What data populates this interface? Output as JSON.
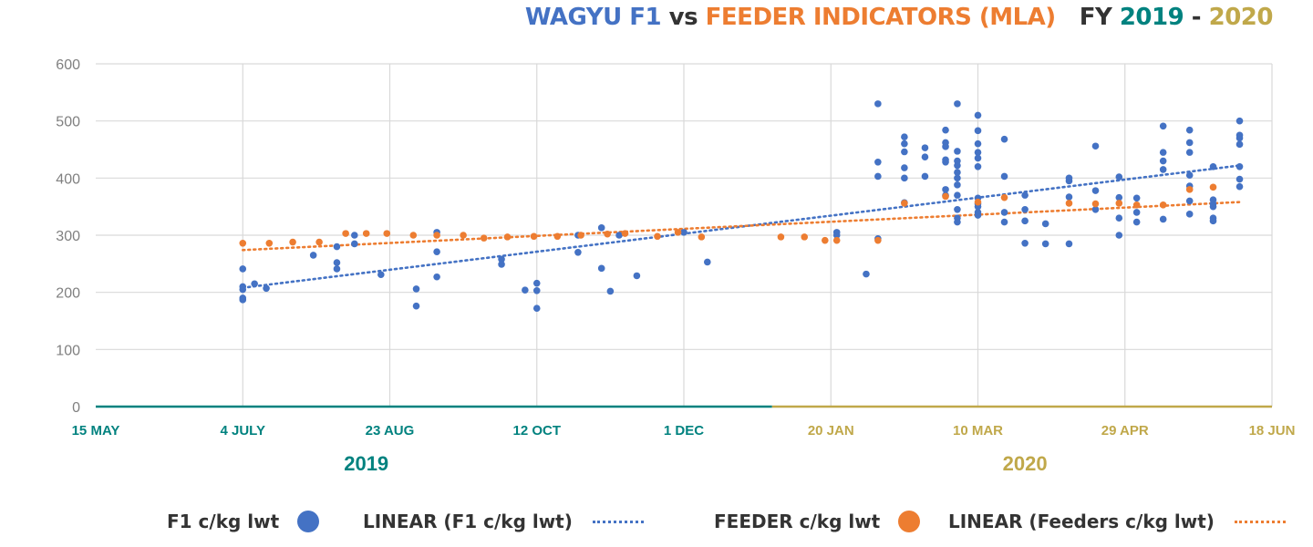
{
  "title": {
    "part1": "WAGYU F1",
    "part2": " vs ",
    "part3": "FEEDER INDICATORS (MLA)",
    "part4": "FY ",
    "part5": "2019",
    "part6": " - ",
    "part7": "2020"
  },
  "colors": {
    "f1": "#4472c4",
    "feeder": "#ed7d31",
    "year2019": "#00827f",
    "year2020": "#c0a84a",
    "grid": "#d9d9d9",
    "axis_text": "#808080",
    "title_dark": "#333333"
  },
  "legend": {
    "f1": "F1 c/kg lwt",
    "f1_linear": "LINEAR (F1 c/kg lwt)",
    "feeder": "FEEDER c/kg lwt",
    "feeder_linear": "LINEAR (Feeders c/kg lwt)"
  },
  "chart_data": {
    "type": "scatter",
    "ylim": [
      0,
      600
    ],
    "yticks": [
      0,
      100,
      200,
      300,
      400,
      500,
      600
    ],
    "xlim": [
      "2019-05-15",
      "2020-06-18"
    ],
    "xticks": [
      {
        "date": "2019-05-15",
        "label": "15 MAY"
      },
      {
        "date": "2019-07-04",
        "label": "4 JULY"
      },
      {
        "date": "2019-08-23",
        "label": "23 AUG"
      },
      {
        "date": "2019-10-12",
        "label": "12 OCT"
      },
      {
        "date": "2019-12-01",
        "label": "1 DEC"
      },
      {
        "date": "2020-01-20",
        "label": "20 JAN"
      },
      {
        "date": "2020-03-10",
        "label": "10 MAR"
      },
      {
        "date": "2020-04-29",
        "label": "29 APR"
      },
      {
        "date": "2020-06-18",
        "label": "18 JUN"
      }
    ],
    "year_labels": [
      {
        "label": "2019",
        "from": "2019-05-15",
        "to": "2019-12-31"
      },
      {
        "label": "2020",
        "from": "2019-12-31",
        "to": "2020-06-18"
      }
    ],
    "grid": true,
    "legend_position": "bottom",
    "series": [
      {
        "name": "F1 c/kg lwt",
        "color": "#4472c4",
        "points": [
          [
            "2019-07-04",
            241
          ],
          [
            "2019-07-04",
            210
          ],
          [
            "2019-07-04",
            205
          ],
          [
            "2019-07-04",
            190
          ],
          [
            "2019-07-04",
            187
          ],
          [
            "2019-07-08",
            215
          ],
          [
            "2019-07-12",
            207
          ],
          [
            "2019-07-28",
            265
          ],
          [
            "2019-08-05",
            280
          ],
          [
            "2019-08-05",
            252
          ],
          [
            "2019-08-05",
            241
          ],
          [
            "2019-08-11",
            300
          ],
          [
            "2019-08-11",
            285
          ],
          [
            "2019-08-20",
            231
          ],
          [
            "2019-09-01",
            206
          ],
          [
            "2019-09-01",
            176
          ],
          [
            "2019-09-08",
            305
          ],
          [
            "2019-09-08",
            271
          ],
          [
            "2019-09-08",
            227
          ],
          [
            "2019-09-30",
            258
          ],
          [
            "2019-09-30",
            249
          ],
          [
            "2019-10-08",
            204
          ],
          [
            "2019-10-12",
            216
          ],
          [
            "2019-10-12",
            203
          ],
          [
            "2019-10-12",
            172
          ],
          [
            "2019-10-26",
            270
          ],
          [
            "2019-10-26",
            300
          ],
          [
            "2019-11-03",
            313
          ],
          [
            "2019-11-03",
            242
          ],
          [
            "2019-11-06",
            202
          ],
          [
            "2019-11-09",
            300
          ],
          [
            "2019-11-15",
            229
          ],
          [
            "2019-12-01",
            305
          ],
          [
            "2019-12-09",
            253
          ],
          [
            "2020-01-22",
            305
          ],
          [
            "2020-01-22",
            300
          ],
          [
            "2020-02-01",
            232
          ],
          [
            "2020-02-05",
            530
          ],
          [
            "2020-02-05",
            428
          ],
          [
            "2020-02-05",
            403
          ],
          [
            "2020-02-05",
            294
          ],
          [
            "2020-02-14",
            472
          ],
          [
            "2020-02-14",
            460
          ],
          [
            "2020-02-14",
            446
          ],
          [
            "2020-02-14",
            418
          ],
          [
            "2020-02-14",
            400
          ],
          [
            "2020-02-14",
            357
          ],
          [
            "2020-02-21",
            453
          ],
          [
            "2020-02-21",
            437
          ],
          [
            "2020-02-21",
            403
          ],
          [
            "2020-02-28",
            484
          ],
          [
            "2020-02-28",
            462
          ],
          [
            "2020-02-28",
            455
          ],
          [
            "2020-02-28",
            432
          ],
          [
            "2020-02-28",
            428
          ],
          [
            "2020-02-28",
            380
          ],
          [
            "2020-02-28",
            370
          ],
          [
            "2020-03-03",
            530
          ],
          [
            "2020-03-03",
            447
          ],
          [
            "2020-03-03",
            430
          ],
          [
            "2020-03-03",
            422
          ],
          [
            "2020-03-03",
            410
          ],
          [
            "2020-03-03",
            400
          ],
          [
            "2020-03-03",
            388
          ],
          [
            "2020-03-03",
            370
          ],
          [
            "2020-03-03",
            345
          ],
          [
            "2020-03-03",
            330
          ],
          [
            "2020-03-03",
            323
          ],
          [
            "2020-03-10",
            510
          ],
          [
            "2020-03-10",
            483
          ],
          [
            "2020-03-10",
            460
          ],
          [
            "2020-03-10",
            445
          ],
          [
            "2020-03-10",
            435
          ],
          [
            "2020-03-10",
            420
          ],
          [
            "2020-03-10",
            365
          ],
          [
            "2020-03-10",
            355
          ],
          [
            "2020-03-10",
            350
          ],
          [
            "2020-03-10",
            340
          ],
          [
            "2020-03-10",
            335
          ],
          [
            "2020-03-19",
            468
          ],
          [
            "2020-03-19",
            403
          ],
          [
            "2020-03-19",
            340
          ],
          [
            "2020-03-19",
            323
          ],
          [
            "2020-03-26",
            370
          ],
          [
            "2020-03-26",
            345
          ],
          [
            "2020-03-26",
            325
          ],
          [
            "2020-03-26",
            286
          ],
          [
            "2020-04-02",
            320
          ],
          [
            "2020-04-02",
            285
          ],
          [
            "2020-04-10",
            400
          ],
          [
            "2020-04-10",
            395
          ],
          [
            "2020-04-10",
            367
          ],
          [
            "2020-04-10",
            285
          ],
          [
            "2020-04-19",
            456
          ],
          [
            "2020-04-19",
            378
          ],
          [
            "2020-04-19",
            345
          ],
          [
            "2020-04-27",
            402
          ],
          [
            "2020-04-27",
            366
          ],
          [
            "2020-04-27",
            330
          ],
          [
            "2020-04-27",
            300
          ],
          [
            "2020-05-03",
            365
          ],
          [
            "2020-05-03",
            340
          ],
          [
            "2020-05-03",
            323
          ],
          [
            "2020-05-12",
            491
          ],
          [
            "2020-05-12",
            445
          ],
          [
            "2020-05-12",
            430
          ],
          [
            "2020-05-12",
            415
          ],
          [
            "2020-05-12",
            328
          ],
          [
            "2020-05-21",
            484
          ],
          [
            "2020-05-21",
            462
          ],
          [
            "2020-05-21",
            445
          ],
          [
            "2020-05-21",
            405
          ],
          [
            "2020-05-21",
            386
          ],
          [
            "2020-05-21",
            360
          ],
          [
            "2020-05-21",
            337
          ],
          [
            "2020-05-29",
            420
          ],
          [
            "2020-05-29",
            362
          ],
          [
            "2020-05-29",
            355
          ],
          [
            "2020-05-29",
            350
          ],
          [
            "2020-05-29",
            330
          ],
          [
            "2020-05-29",
            325
          ],
          [
            "2020-06-07",
            500
          ],
          [
            "2020-06-07",
            475
          ],
          [
            "2020-06-07",
            470
          ],
          [
            "2020-06-07",
            459
          ],
          [
            "2020-06-07",
            420
          ],
          [
            "2020-06-07",
            398
          ],
          [
            "2020-06-07",
            385
          ]
        ]
      },
      {
        "name": "FEEDER c/kg lwt",
        "color": "#ed7d31",
        "points": [
          [
            "2019-07-04",
            286
          ],
          [
            "2019-07-13",
            286
          ],
          [
            "2019-07-21",
            288
          ],
          [
            "2019-07-30",
            288
          ],
          [
            "2019-08-08",
            303
          ],
          [
            "2019-08-15",
            303
          ],
          [
            "2019-08-22",
            303
          ],
          [
            "2019-08-31",
            300
          ],
          [
            "2019-09-08",
            300
          ],
          [
            "2019-09-17",
            300
          ],
          [
            "2019-09-24",
            295
          ],
          [
            "2019-10-02",
            297
          ],
          [
            "2019-10-11",
            298
          ],
          [
            "2019-10-19",
            298
          ],
          [
            "2019-10-27",
            300
          ],
          [
            "2019-11-05",
            302
          ],
          [
            "2019-11-11",
            303
          ],
          [
            "2019-11-22",
            298
          ],
          [
            "2019-11-29",
            305
          ],
          [
            "2019-12-07",
            297
          ],
          [
            "2020-01-03",
            297
          ],
          [
            "2020-01-11",
            297
          ],
          [
            "2020-01-18",
            291
          ],
          [
            "2020-01-22",
            291
          ],
          [
            "2020-02-05",
            291
          ],
          [
            "2020-02-14",
            356
          ],
          [
            "2020-02-28",
            368
          ],
          [
            "2020-03-10",
            358
          ],
          [
            "2020-03-19",
            366
          ],
          [
            "2020-04-10",
            356
          ],
          [
            "2020-04-19",
            355
          ],
          [
            "2020-04-27",
            356
          ],
          [
            "2020-05-03",
            353
          ],
          [
            "2020-05-12",
            353
          ],
          [
            "2020-05-21",
            380
          ],
          [
            "2020-05-29",
            384
          ]
        ]
      }
    ],
    "trendlines": [
      {
        "name": "LINEAR (F1 c/kg lwt)",
        "type": "linear",
        "color": "#4472c4",
        "from": [
          "2019-07-04",
          208
        ],
        "to": [
          "2020-06-07",
          422
        ]
      },
      {
        "name": "LINEAR (Feeders c/kg lwt)",
        "type": "linear",
        "color": "#ed7d31",
        "from": [
          "2019-07-04",
          274
        ],
        "to": [
          "2020-06-07",
          358
        ]
      }
    ]
  }
}
